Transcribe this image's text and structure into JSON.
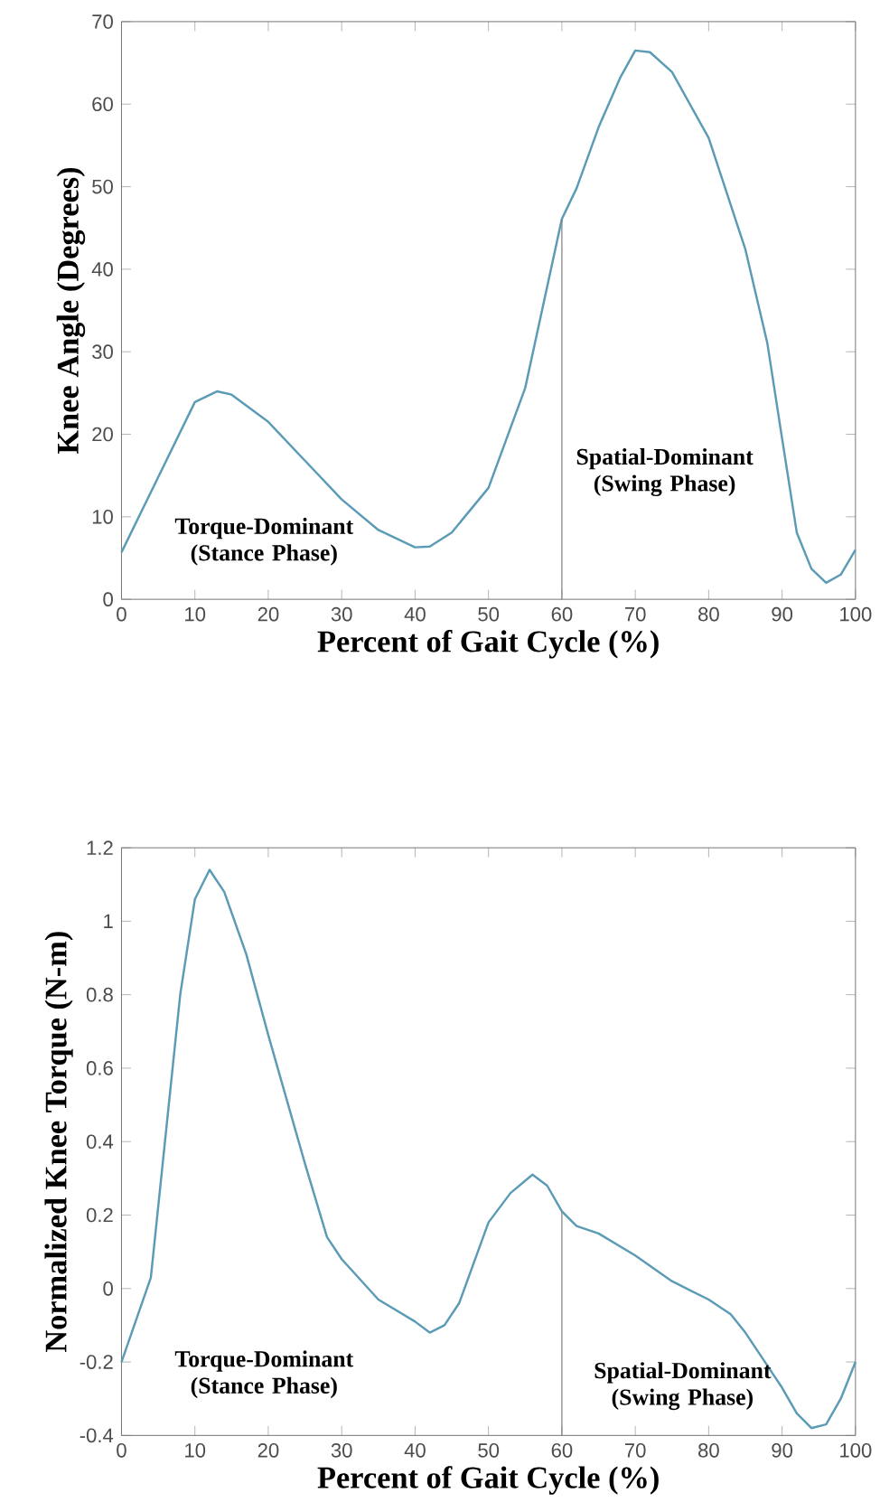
{
  "chart_data": [
    {
      "type": "line",
      "xlabel": "Percent of Gait Cycle (%)",
      "ylabel": "Knee Angle (Degrees)",
      "x": [
        0,
        5,
        10,
        13,
        15,
        20,
        25,
        30,
        35,
        40,
        42,
        45,
        50,
        55,
        60,
        62,
        65,
        68,
        70,
        72,
        75,
        80,
        85,
        88,
        90,
        92,
        94,
        96,
        98,
        100
      ],
      "series": [
        {
          "color": "#5b9bb5",
          "values": [
            5.7,
            14.8,
            23.9,
            25.2,
            24.8,
            21.5,
            16.8,
            12.1,
            8.4,
            6.3,
            6.4,
            8.1,
            13.5,
            25.6,
            46.1,
            49.8,
            57.2,
            63.3,
            66.5,
            66.3,
            63.9,
            55.9,
            42.4,
            31,
            19.5,
            8.1,
            3.7,
            2.0,
            3.0,
            6.0
          ]
        }
      ],
      "xlim": [
        0,
        100
      ],
      "xticks": [
        0,
        10,
        20,
        30,
        40,
        50,
        60,
        70,
        80,
        90,
        100
      ],
      "ylim": [
        0,
        70
      ],
      "yticks": [
        0,
        10,
        20,
        30,
        40,
        50,
        60,
        70
      ],
      "ref_lines": [
        {
          "axis": "x",
          "value": 60,
          "color": "#808080"
        }
      ],
      "annotations": [
        "Torque-Dominant (Stance Phase)",
        "Spatial-Dominant (Swing Phase)"
      ]
    },
    {
      "type": "line",
      "xlabel": "Percent of Gait Cycle (%)",
      "ylabel": "Normalized Knee Torque (N-m)",
      "x": [
        0,
        4,
        8,
        10,
        12,
        14,
        17,
        20,
        25,
        28,
        30,
        35,
        40,
        42,
        44,
        46,
        50,
        53,
        56,
        58,
        60,
        62,
        65,
        70,
        75,
        80,
        83,
        85,
        88,
        90,
        92,
        94,
        96,
        98,
        100
      ],
      "series": [
        {
          "color": "#5b9bb5",
          "values": [
            -0.2,
            0.03,
            0.8,
            1.06,
            1.14,
            1.08,
            0.91,
            0.69,
            0.34,
            0.14,
            0.08,
            -0.03,
            -0.09,
            -0.12,
            -0.1,
            -0.04,
            0.18,
            0.26,
            0.31,
            0.28,
            0.21,
            0.17,
            0.15,
            0.09,
            0.02,
            -0.03,
            -0.07,
            -0.12,
            -0.21,
            -0.27,
            -0.34,
            -0.38,
            -0.37,
            -0.3,
            -0.2
          ]
        }
      ],
      "xlim": [
        0,
        100
      ],
      "xticks": [
        0,
        10,
        20,
        30,
        40,
        50,
        60,
        70,
        80,
        90,
        100
      ],
      "ylim": [
        -0.4,
        1.2
      ],
      "yticks": [
        -0.4,
        -0.2,
        0,
        0.2,
        0.4,
        0.6,
        0.8,
        1,
        1.2
      ],
      "ref_lines": [
        {
          "axis": "x",
          "value": 60,
          "color": "#808080"
        }
      ],
      "annotations": [
        "Torque-Dominant (Stance Phase)",
        "Spatial-Dominant (Swing Phase)"
      ]
    }
  ]
}
